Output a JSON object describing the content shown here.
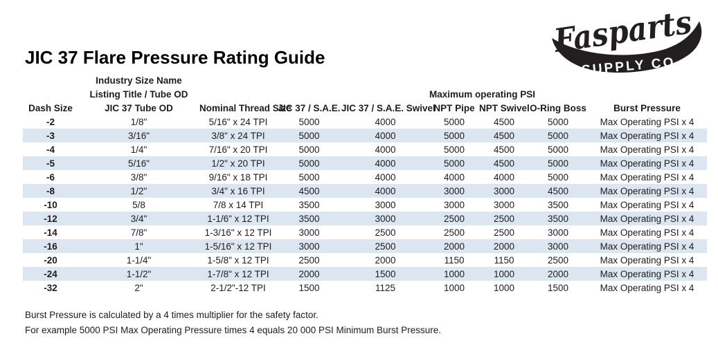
{
  "page": {
    "title": "JIC 37 Flare Pressure Rating Guide"
  },
  "logo": {
    "script_text": "Fasparts",
    "subtitle": "SUPPLY CO."
  },
  "table": {
    "group_headers": {
      "industry_size_name": "Industry Size Name",
      "listing_title": "Listing Title / Tube OD",
      "max_operating_psi": "Maximum operating PSI"
    },
    "columns": [
      "Dash Size",
      "JIC 37 Tube OD",
      "Nominal Thread Size",
      "JIC 37 / S.A.E.",
      "JIC 37 / S.A.E. Swivel",
      "NPT Pipe",
      "NPT Swivel",
      "O-Ring Boss",
      "Burst Pressure"
    ],
    "rows": [
      [
        "-2",
        "1/8\"",
        "5/16\" x 24 TPI",
        "5000",
        "4000",
        "5000",
        "4500",
        "5000",
        "Max Operating PSI x 4"
      ],
      [
        "-3",
        "3/16\"",
        "3/8\" x 24 TPI",
        "5000",
        "4000",
        "5000",
        "4500",
        "5000",
        "Max Operating PSI x 4"
      ],
      [
        "-4",
        "1/4\"",
        "7/16\" x 20 TPI",
        "5000",
        "4000",
        "5000",
        "4500",
        "5000",
        "Max Operating PSI x 4"
      ],
      [
        "-5",
        "5/16\"",
        "1/2\" x 20 TPI",
        "5000",
        "4000",
        "5000",
        "4500",
        "5000",
        "Max Operating PSI x 4"
      ],
      [
        "-6",
        "3/8\"",
        "9/16\" x 18 TPI",
        "5000",
        "4000",
        "4000",
        "4000",
        "5000",
        "Max Operating PSI x 4"
      ],
      [
        "-8",
        "1/2\"",
        "3/4\" x 16 TPI",
        "4500",
        "4000",
        "3000",
        "3000",
        "4500",
        "Max Operating PSI x 4"
      ],
      [
        "-10",
        "5/8",
        "7/8 x 14 TPI",
        "3500",
        "3000",
        "3000",
        "3000",
        "3500",
        "Max Operating PSI x 4"
      ],
      [
        "-12",
        "3/4\"",
        "1-1/6\" x 12 TPI",
        "3500",
        "3000",
        "2500",
        "2500",
        "3500",
        "Max Operating PSI x 4"
      ],
      [
        "-14",
        "7/8\"",
        "1-3/16\" x 12 TPI",
        "3000",
        "2500",
        "2500",
        "2500",
        "3000",
        "Max Operating PSI x 4"
      ],
      [
        "-16",
        "1\"",
        "1-5/16\" x 12 TPI",
        "3000",
        "2500",
        "2000",
        "2000",
        "3000",
        "Max Operating PSI x 4"
      ],
      [
        "-20",
        "1-1/4\"",
        "1-5/8\" x 12 TPI",
        "2500",
        "2000",
        "1150",
        "1150",
        "2500",
        "Max Operating PSI x 4"
      ],
      [
        "-24",
        "1-1/2\"",
        "1-7/8\" x 12 TPI",
        "2000",
        "1500",
        "1000",
        "1000",
        "2000",
        "Max Operating PSI x 4"
      ],
      [
        "-32",
        "2\"",
        "2-1/2\"-12 TPI",
        "1500",
        "1125",
        "1000",
        "1000",
        "1500",
        "Max Operating PSI x 4"
      ]
    ]
  },
  "footer": {
    "line1": "Burst Pressure is calculated by a 4 times multiplier for the safety factor.",
    "line2": "For example 5000 PSI Max Operating Pressure times 4 equals 20 000 PSI Minimum Burst Pressure."
  },
  "colors": {
    "stripe": "#dce6f1",
    "text": "#1c1c1c",
    "logo": "#231f20"
  }
}
